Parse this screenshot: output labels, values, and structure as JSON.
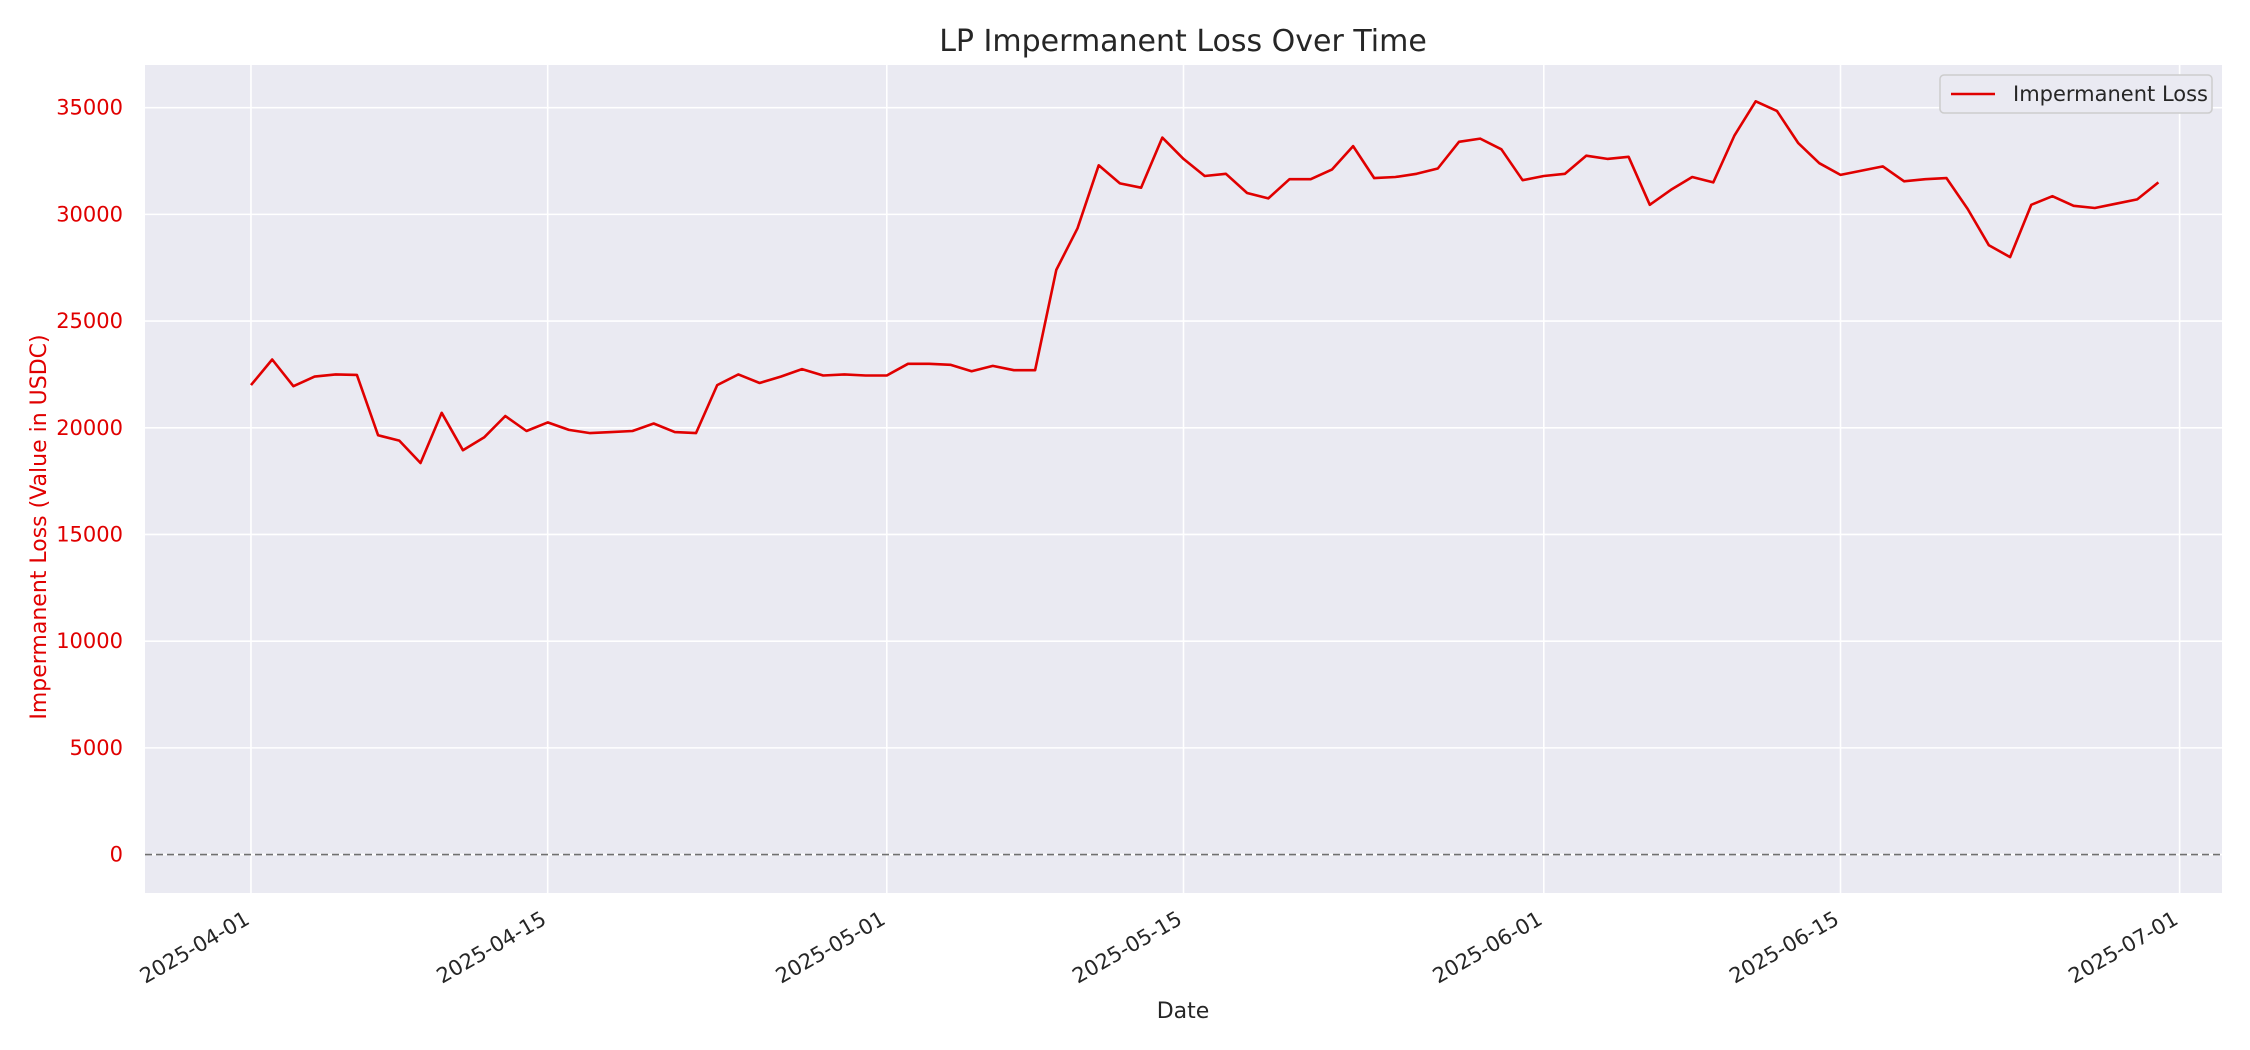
{
  "chart_data": {
    "type": "line",
    "title": "LP Impermanent Loss Over Time",
    "xlabel": "Date",
    "ylabel": "Impermanent Loss (Value in USDC)",
    "grid": true,
    "legend_placement": "top-right",
    "xlim": [
      "2025-03-27",
      "2025-07-03"
    ],
    "ylim": [
      -1800,
      37000
    ],
    "x_ticks": [
      "2025-04-01",
      "2025-04-15",
      "2025-05-01",
      "2025-05-15",
      "2025-06-01",
      "2025-06-15",
      "2025-07-01"
    ],
    "y_ticks": [
      0,
      5000,
      10000,
      15000,
      20000,
      25000,
      30000,
      35000
    ],
    "reference_line": {
      "y": 0,
      "style": "dashed",
      "color": "#707070"
    },
    "colors": {
      "series": "#e00000",
      "plot_background": "#eaeaf2",
      "grid": "#ffffff",
      "ylabel": "#e00000"
    },
    "series": [
      {
        "name": "Impermanent Loss",
        "x": [
          "2025-04-01",
          "2025-04-02",
          "2025-04-03",
          "2025-04-04",
          "2025-04-05",
          "2025-04-06",
          "2025-04-07",
          "2025-04-08",
          "2025-04-09",
          "2025-04-10",
          "2025-04-11",
          "2025-04-12",
          "2025-04-13",
          "2025-04-14",
          "2025-04-15",
          "2025-04-16",
          "2025-04-17",
          "2025-04-18",
          "2025-04-19",
          "2025-04-20",
          "2025-04-21",
          "2025-04-22",
          "2025-04-23",
          "2025-04-24",
          "2025-04-25",
          "2025-04-26",
          "2025-04-27",
          "2025-04-28",
          "2025-04-29",
          "2025-04-30",
          "2025-05-01",
          "2025-05-02",
          "2025-05-03",
          "2025-05-04",
          "2025-05-05",
          "2025-05-06",
          "2025-05-07",
          "2025-05-08",
          "2025-05-09",
          "2025-05-10",
          "2025-05-11",
          "2025-05-12",
          "2025-05-13",
          "2025-05-14",
          "2025-05-15",
          "2025-05-16",
          "2025-05-17",
          "2025-05-18",
          "2025-05-19",
          "2025-05-20",
          "2025-05-21",
          "2025-05-22",
          "2025-05-23",
          "2025-05-24",
          "2025-05-25",
          "2025-05-26",
          "2025-05-27",
          "2025-05-28",
          "2025-05-29",
          "2025-05-30",
          "2025-05-31",
          "2025-06-01",
          "2025-06-02",
          "2025-06-03",
          "2025-06-04",
          "2025-06-05",
          "2025-06-06",
          "2025-06-07",
          "2025-06-08",
          "2025-06-09",
          "2025-06-10",
          "2025-06-11",
          "2025-06-12",
          "2025-06-13",
          "2025-06-14",
          "2025-06-15",
          "2025-06-16",
          "2025-06-17",
          "2025-06-18",
          "2025-06-19",
          "2025-06-20",
          "2025-06-21",
          "2025-06-22",
          "2025-06-23",
          "2025-06-24",
          "2025-06-25",
          "2025-06-26",
          "2025-06-27",
          "2025-06-28",
          "2025-06-29",
          "2025-06-30"
        ],
        "values": [
          22000,
          23200,
          21950,
          22400,
          22500,
          22480,
          19650,
          19400,
          18350,
          20700,
          18950,
          19550,
          20550,
          19850,
          20250,
          19900,
          19750,
          19800,
          19850,
          20200,
          19800,
          19750,
          22000,
          22500,
          22100,
          22400,
          22750,
          22450,
          22500,
          22450,
          22450,
          23000,
          23000,
          22950,
          22650,
          22900,
          22700,
          22700,
          27400,
          29350,
          32300,
          31450,
          31250,
          33600,
          32600,
          31800,
          31900,
          31000,
          30750,
          31650,
          31650,
          32100,
          33200,
          31700,
          31750,
          31900,
          32150,
          33400,
          33550,
          33050,
          31600,
          31800,
          31900,
          32750,
          32600,
          32700,
          30450,
          31150,
          31750,
          31500,
          33700,
          35300,
          34850,
          33350,
          32400,
          31850,
          32050,
          32250,
          31550,
          31650,
          31700,
          30250,
          28550,
          28000,
          30450,
          30850,
          30400,
          30300,
          30500,
          30700,
          31500
        ]
      }
    ]
  }
}
